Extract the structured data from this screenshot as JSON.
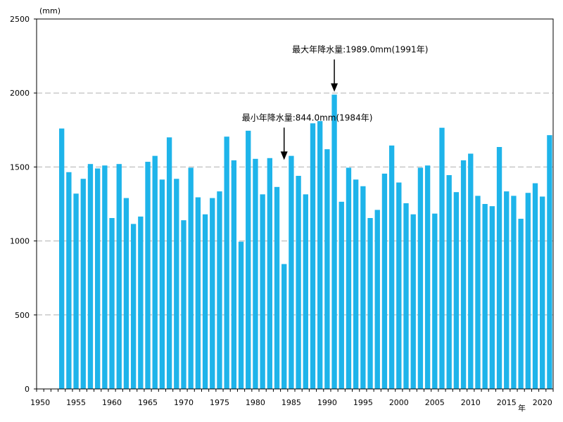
{
  "chart_data": {
    "type": "bar",
    "title": "",
    "xlabel": "",
    "ylabel": "",
    "y_unit": "(mm)",
    "x_unit": "年",
    "xlim": [
      1950,
      2021
    ],
    "ylim": [
      0,
      2500
    ],
    "y_ticks": [
      0,
      500,
      1000,
      1500,
      2000,
      2500
    ],
    "x_tick_labels": [
      "1950",
      "1955",
      "1960",
      "1965",
      "1970",
      "1975",
      "1980",
      "1985",
      "1990",
      "1995",
      "2000",
      "2005",
      "2010",
      "2015",
      "2020"
    ],
    "grid": "horizontal dashed",
    "bar_color": "#1EB4EA",
    "categories": [
      1953,
      1954,
      1955,
      1956,
      1957,
      1958,
      1959,
      1960,
      1961,
      1962,
      1963,
      1964,
      1965,
      1966,
      1967,
      1968,
      1969,
      1970,
      1971,
      1972,
      1973,
      1974,
      1975,
      1976,
      1977,
      1978,
      1979,
      1980,
      1981,
      1982,
      1983,
      1984,
      1985,
      1986,
      1987,
      1988,
      1989,
      1990,
      1991,
      1992,
      1993,
      1994,
      1995,
      1996,
      1997,
      1998,
      1999,
      2000,
      2001,
      2002,
      2003,
      2004,
      2005,
      2006,
      2007,
      2008,
      2009,
      2010,
      2011,
      2012,
      2013,
      2014,
      2015,
      2016,
      2017,
      2018,
      2019,
      2020,
      2021
    ],
    "values": [
      1760,
      1465,
      1320,
      1420,
      1520,
      1490,
      1510,
      1155,
      1520,
      1290,
      1115,
      1165,
      1535,
      1575,
      1415,
      1700,
      1420,
      1140,
      1495,
      1295,
      1180,
      1290,
      1335,
      1705,
      1545,
      995,
      1745,
      1555,
      1315,
      1560,
      1365,
      844,
      1575,
      1440,
      1315,
      1795,
      1810,
      1620,
      1989,
      1265,
      1495,
      1415,
      1370,
      1155,
      1210,
      1455,
      1645,
      1395,
      1255,
      1180,
      1495,
      1510,
      1185,
      1765,
      1445,
      1330,
      1545,
      1590,
      1305,
      1250,
      1235,
      1635,
      1335,
      1305,
      1150,
      1325,
      1390,
      1300,
      1715
    ],
    "annotations": [
      {
        "text": "最大年降水量:1989.0mm(1991年)",
        "x": 1991,
        "y": 1989
      },
      {
        "text": "最小年降水量:844.0mm(1984年)",
        "x": 1984,
        "y": 844
      }
    ]
  }
}
